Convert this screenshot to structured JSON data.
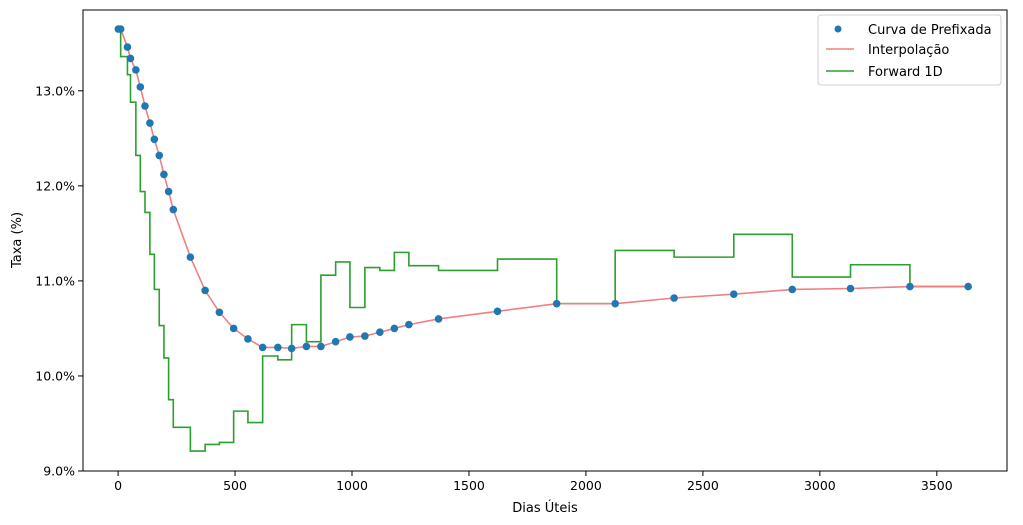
{
  "chart_data": {
    "type": "line",
    "xlabel": "Dias Úteis",
    "ylabel": "Taxa (%)",
    "xlim": [
      -150,
      3800
    ],
    "ylim": [
      9.0,
      13.85
    ],
    "x_ticks": [
      0,
      500,
      1000,
      1500,
      2000,
      2500,
      3000,
      3500
    ],
    "y_ticks": [
      9.0,
      10.0,
      11.0,
      12.0,
      13.0
    ],
    "y_tick_labels": [
      "9.0%",
      "10.0%",
      "11.0%",
      "12.0%",
      "13.0%"
    ],
    "grid": false,
    "legend_position": "top-right",
    "colors": {
      "scatter": "#1f77b4",
      "interp": "#f08080",
      "forward": "#2ca02c"
    },
    "series": [
      {
        "name": "Curva de Prefixada",
        "kind": "scatter",
        "x": [
          1,
          11,
          40,
          53,
          76,
          95,
          115,
          136,
          155,
          176,
          196,
          216,
          236,
          309,
          372,
          433,
          494,
          555,
          618,
          683,
          742,
          805,
          867,
          930,
          991,
          1055,
          1119,
          1181,
          1243,
          1370,
          1622,
          1875,
          2125,
          2377,
          2632,
          2882,
          3131,
          3385,
          3634
        ],
        "y": [
          13.65,
          13.65,
          13.46,
          13.34,
          13.22,
          13.04,
          12.84,
          12.66,
          12.49,
          12.32,
          12.12,
          11.94,
          11.75,
          11.25,
          10.9,
          10.67,
          10.5,
          10.39,
          10.3,
          10.3,
          10.29,
          10.31,
          10.31,
          10.36,
          10.41,
          10.42,
          10.46,
          10.5,
          10.54,
          10.6,
          10.68,
          10.76,
          10.76,
          10.82,
          10.86,
          10.91,
          10.92,
          10.94,
          10.94
        ]
      },
      {
        "name": "Interpolação",
        "kind": "line",
        "x": [
          1,
          11,
          40,
          53,
          76,
          95,
          115,
          136,
          155,
          176,
          196,
          216,
          236,
          309,
          372,
          433,
          494,
          555,
          618,
          683,
          742,
          805,
          867,
          930,
          991,
          1055,
          1119,
          1181,
          1243,
          1370,
          1622,
          1875,
          2125,
          2377,
          2632,
          2882,
          3131,
          3385,
          3634
        ],
        "y": [
          13.65,
          13.65,
          13.46,
          13.34,
          13.22,
          13.04,
          12.84,
          12.66,
          12.49,
          12.32,
          12.12,
          11.94,
          11.75,
          11.25,
          10.9,
          10.67,
          10.5,
          10.39,
          10.3,
          10.3,
          10.29,
          10.31,
          10.31,
          10.36,
          10.41,
          10.42,
          10.46,
          10.5,
          10.54,
          10.6,
          10.68,
          10.76,
          10.76,
          10.82,
          10.86,
          10.91,
          10.92,
          10.94,
          10.94
        ]
      },
      {
        "name": "Forward 1D",
        "kind": "step",
        "x": [
          1,
          11,
          11,
          40,
          40,
          53,
          53,
          76,
          76,
          95,
          95,
          115,
          115,
          136,
          136,
          155,
          155,
          176,
          176,
          196,
          196,
          216,
          216,
          236,
          236,
          309,
          309,
          372,
          372,
          433,
          433,
          494,
          494,
          555,
          555,
          618,
          618,
          683,
          683,
          742,
          742,
          805,
          805,
          867,
          867,
          930,
          930,
          991,
          991,
          1055,
          1055,
          1119,
          1119,
          1181,
          1181,
          1243,
          1243,
          1370,
          1370,
          1622,
          1622,
          1875,
          1875,
          2125,
          2125,
          2377,
          2377,
          2632,
          2632,
          2882,
          2882,
          3131,
          3131,
          3385,
          3385,
          3634
        ],
        "y": [
          13.65,
          13.65,
          13.36,
          13.36,
          13.17,
          13.17,
          12.88,
          12.88,
          12.32,
          12.32,
          11.94,
          11.94,
          11.72,
          11.72,
          11.28,
          11.28,
          10.91,
          10.91,
          10.53,
          10.53,
          10.19,
          10.19,
          9.75,
          9.75,
          9.46,
          9.46,
          9.21,
          9.21,
          9.28,
          9.28,
          9.3,
          9.3,
          9.63,
          9.63,
          9.51,
          9.51,
          10.21,
          10.21,
          10.17,
          10.17,
          10.54,
          10.54,
          10.36,
          10.36,
          11.06,
          11.06,
          11.2,
          11.2,
          10.72,
          10.72,
          11.14,
          11.14,
          11.11,
          11.11,
          11.3,
          11.3,
          11.16,
          11.16,
          11.11,
          11.11,
          11.23,
          11.23,
          10.76,
          10.76,
          11.32,
          11.32,
          11.25,
          11.25,
          11.49,
          11.49,
          11.04,
          11.04,
          11.17,
          11.17,
          10.94,
          10.94
        ]
      }
    ]
  }
}
